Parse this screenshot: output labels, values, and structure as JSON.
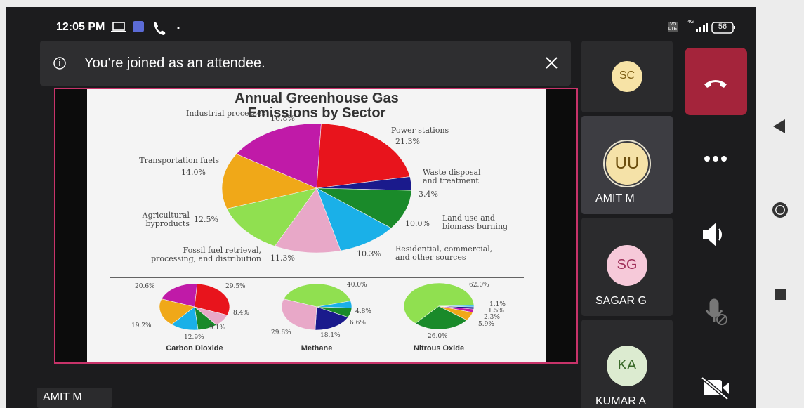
{
  "status_bar": {
    "time": "12:05 PM",
    "volte": "Vo LTE",
    "network": "4G",
    "battery": "56"
  },
  "banner": {
    "message": "You're joined as an attendee."
  },
  "chart_data": [
    {
      "type": "pie",
      "title": "Annual Greenhouse Gas Emissions by Sector",
      "categories": [
        "Industrial processes",
        "Power stations",
        "Waste disposal\nand treatment",
        "Land use and\nbiomass burning",
        "Residential, commercial,\nand other sources",
        "Fossil fuel retrieval,\nprocessing, and distribution",
        "Agricultural\nbyproducts",
        "Transportation fuels"
      ],
      "values": [
        16.8,
        21.3,
        3.4,
        10.0,
        10.3,
        11.3,
        12.5,
        14.0
      ],
      "value_labels": [
        "16.8%",
        "21.3%",
        "3.4%",
        "10.0%",
        "10.3%",
        "11.3%",
        "12.5%",
        "14.0%"
      ],
      "colors": [
        "#c01aa8",
        "#e8141c",
        "#1a1a8c",
        "#1a8a2a",
        "#1ab0e8",
        "#e8a8c8",
        "#90e050",
        "#f0a818"
      ]
    },
    {
      "type": "pie",
      "title": "Carbon Dioxide",
      "values": [
        20.6,
        29.5,
        8.4,
        9.1,
        12.9,
        19.2
      ],
      "value_labels": [
        "20.6%",
        "29.5%",
        "8.4%",
        "9.1%",
        "12.9%",
        "19.2%"
      ],
      "colors": [
        "#c01aa8",
        "#e8141c",
        "#e8a8c8",
        "#1a8a2a",
        "#1ab0e8",
        "#f0a818"
      ]
    },
    {
      "type": "pie",
      "title": "Methane",
      "values": [
        40.0,
        4.8,
        6.6,
        18.1,
        29.6
      ],
      "value_labels": [
        "40.0%",
        "4.8%",
        "6.6%",
        "18.1%",
        "29.6%"
      ],
      "colors": [
        "#90e050",
        "#1ab0e8",
        "#1a8a2a",
        "#1a1a8c",
        "#e8a8c8"
      ]
    },
    {
      "type": "pie",
      "title": "Nitrous Oxide",
      "values": [
        62.0,
        1.1,
        1.5,
        2.3,
        5.9,
        26.0
      ],
      "value_labels": [
        "62.0%",
        "1.1%",
        "1.5%",
        "2.3%",
        "5.9%",
        "26.0%"
      ],
      "colors": [
        "#90e050",
        "#1ab0e8",
        "#1a1a8c",
        "#c01aa8",
        "#f0a818",
        "#1a8a2a"
      ]
    }
  ],
  "participants": [
    {
      "initials": "SC"
    },
    {
      "initials": "UU",
      "name": "AMIT M"
    },
    {
      "initials": "SG",
      "name": "SAGAR G"
    },
    {
      "initials": "KA",
      "name": "KUMAR A"
    }
  ],
  "presenter_label": "AMIT M"
}
